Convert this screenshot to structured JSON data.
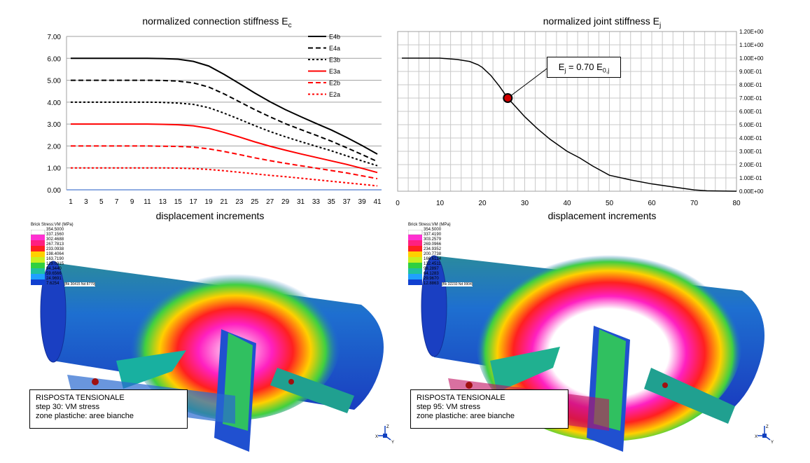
{
  "charts": {
    "left": {
      "title": "normalized connection stiffness E",
      "title_sub": "c",
      "xlabel": "displacement increments"
    },
    "right": {
      "title": "normalized joint stiffness E",
      "title_sub": "j",
      "xlabel": "displacement increments",
      "annotation": {
        "main": "E",
        "sub1": "j",
        "mid": " = 0.70 E",
        "sub2": "0,j"
      }
    }
  },
  "chart_data": [
    {
      "type": "line",
      "title": "normalized connection stiffness Ec",
      "xlabel": "displacement increments",
      "ylabel": "",
      "x": [
        1,
        3,
        5,
        7,
        9,
        11,
        13,
        15,
        17,
        19,
        21,
        23,
        25,
        27,
        29,
        31,
        33,
        35,
        37,
        39,
        41
      ],
      "x_ticks": [
        "1",
        "3",
        "5",
        "7",
        "9",
        "11",
        "13",
        "15",
        "17",
        "19",
        "21",
        "23",
        "25",
        "27",
        "29",
        "31",
        "33",
        "35",
        "37",
        "39",
        "41"
      ],
      "ylim": [
        0,
        7
      ],
      "y_ticks": [
        "0.00",
        "1.00",
        "2.00",
        "3.00",
        "4.00",
        "5.00",
        "6.00",
        "7.00"
      ],
      "grid": true,
      "legend_position": "top-right",
      "series": [
        {
          "name": "E4b",
          "color": "#000000",
          "dash": "solid",
          "values": [
            6.0,
            6.0,
            6.0,
            6.0,
            6.0,
            6.0,
            5.99,
            5.96,
            5.86,
            5.65,
            5.27,
            4.85,
            4.42,
            4.02,
            3.66,
            3.34,
            3.03,
            2.73,
            2.39,
            2.02,
            1.63
          ]
        },
        {
          "name": "E4a",
          "color": "#000000",
          "dash": "dashed",
          "values": [
            5.0,
            5.0,
            5.0,
            5.0,
            5.0,
            5.0,
            4.99,
            4.96,
            4.88,
            4.69,
            4.38,
            4.02,
            3.66,
            3.33,
            3.02,
            2.75,
            2.49,
            2.22,
            1.92,
            1.61,
            1.29
          ]
        },
        {
          "name": "E3b",
          "color": "#000000",
          "dash": "dotted",
          "values": [
            4.0,
            4.0,
            4.0,
            4.0,
            4.0,
            4.0,
            3.99,
            3.96,
            3.9,
            3.75,
            3.5,
            3.22,
            2.93,
            2.66,
            2.42,
            2.2,
            1.99,
            1.78,
            1.55,
            1.32,
            1.1
          ]
        },
        {
          "name": "E3a",
          "color": "#ff0000",
          "dash": "solid",
          "values": [
            3.0,
            3.0,
            3.0,
            3.0,
            3.0,
            3.0,
            2.99,
            2.97,
            2.92,
            2.81,
            2.62,
            2.41,
            2.19,
            1.99,
            1.81,
            1.64,
            1.48,
            1.32,
            1.16,
            0.98,
            0.79
          ]
        },
        {
          "name": "E2b",
          "color": "#ff0000",
          "dash": "dashed",
          "values": [
            2.0,
            2.0,
            2.0,
            2.0,
            2.0,
            2.0,
            1.99,
            1.98,
            1.95,
            1.87,
            1.75,
            1.61,
            1.46,
            1.33,
            1.21,
            1.1,
            0.99,
            0.88,
            0.77,
            0.64,
            0.51
          ]
        },
        {
          "name": "E2a",
          "color": "#ff0000",
          "dash": "dotted",
          "values": [
            1.0,
            1.0,
            1.0,
            1.0,
            1.0,
            1.0,
            1.0,
            0.99,
            0.97,
            0.93,
            0.87,
            0.8,
            0.73,
            0.66,
            0.6,
            0.53,
            0.46,
            0.39,
            0.32,
            0.25,
            0.18
          ]
        }
      ]
    },
    {
      "type": "scatter",
      "title": "normalized joint stiffness Ej",
      "xlabel": "displacement increments",
      "ylabel": "",
      "xlim": [
        0,
        80
      ],
      "x_ticks": [
        "0",
        "10",
        "20",
        "30",
        "40",
        "50",
        "60",
        "70",
        "80"
      ],
      "ylim": [
        0,
        1.2
      ],
      "y_ticks": [
        "0.00E+00",
        "1.00E-01",
        "2.00E-01",
        "3.00E-01",
        "4.00E-01",
        "5.00E-01",
        "6.00E-01",
        "7.00E-01",
        "8.00E-01",
        "9.00E-01",
        "1.00E+00",
        "1.10E+00",
        "1.20E+00"
      ],
      "grid": true,
      "series": [
        {
          "color": "#000000",
          "points": [
            [
              1,
              1.0
            ],
            [
              5,
              1.0
            ],
            [
              10,
              1.0
            ],
            [
              14,
              0.99
            ],
            [
              17,
              0.975
            ],
            [
              19,
              0.95
            ],
            [
              20,
              0.93
            ],
            [
              22,
              0.87
            ],
            [
              24,
              0.79
            ],
            [
              26,
              0.7
            ],
            [
              28,
              0.63
            ],
            [
              30,
              0.56
            ],
            [
              33,
              0.47
            ],
            [
              36,
              0.39
            ],
            [
              40,
              0.3
            ],
            [
              43,
              0.25
            ],
            [
              46,
              0.19
            ],
            [
              50,
              0.12
            ],
            [
              55,
              0.085
            ],
            [
              60,
              0.055
            ],
            [
              65,
              0.032
            ],
            [
              70,
              0.01
            ],
            [
              73,
              0.003
            ],
            [
              80,
              0.0
            ]
          ]
        }
      ],
      "marker": {
        "x": 26,
        "y": 0.7
      }
    }
  ],
  "fem": {
    "left": {
      "colorbar_title": "Brick Stress:VM (MPa)",
      "values": [
        "354.5000",
        "337.1560",
        "302.4688",
        "267.7813",
        "233.0938",
        "198.4064",
        "163.7190",
        "129.0315",
        "94.3440",
        "59.6566",
        "24.9691",
        "7.6254"
      ],
      "extra": "[Bk 30415 Nd 8779]",
      "caption": [
        "RISPOSTA  TENSIONALE",
        "step 30:  VM stress",
        "zone plastiche:  aree bianche"
      ]
    },
    "right": {
      "colorbar_title": "Brick Stress:VM (MPa)",
      "values": [
        "354.5000",
        "337.4190",
        "303.2579",
        "269.0966",
        "234.9352",
        "200.7738",
        "166.6124",
        "132.4511",
        "98.2897",
        "64.1283",
        "29.9670",
        "12.8863"
      ],
      "extra": "[Bk 32233 Nd 9904]",
      "caption": [
        "RISPOSTA  TENSIONALE",
        "step 95:  VM stress",
        "zone plastiche:  aree bianche"
      ]
    },
    "axis_labels": {
      "x": "X",
      "y": "Y",
      "z": "Z"
    }
  }
}
